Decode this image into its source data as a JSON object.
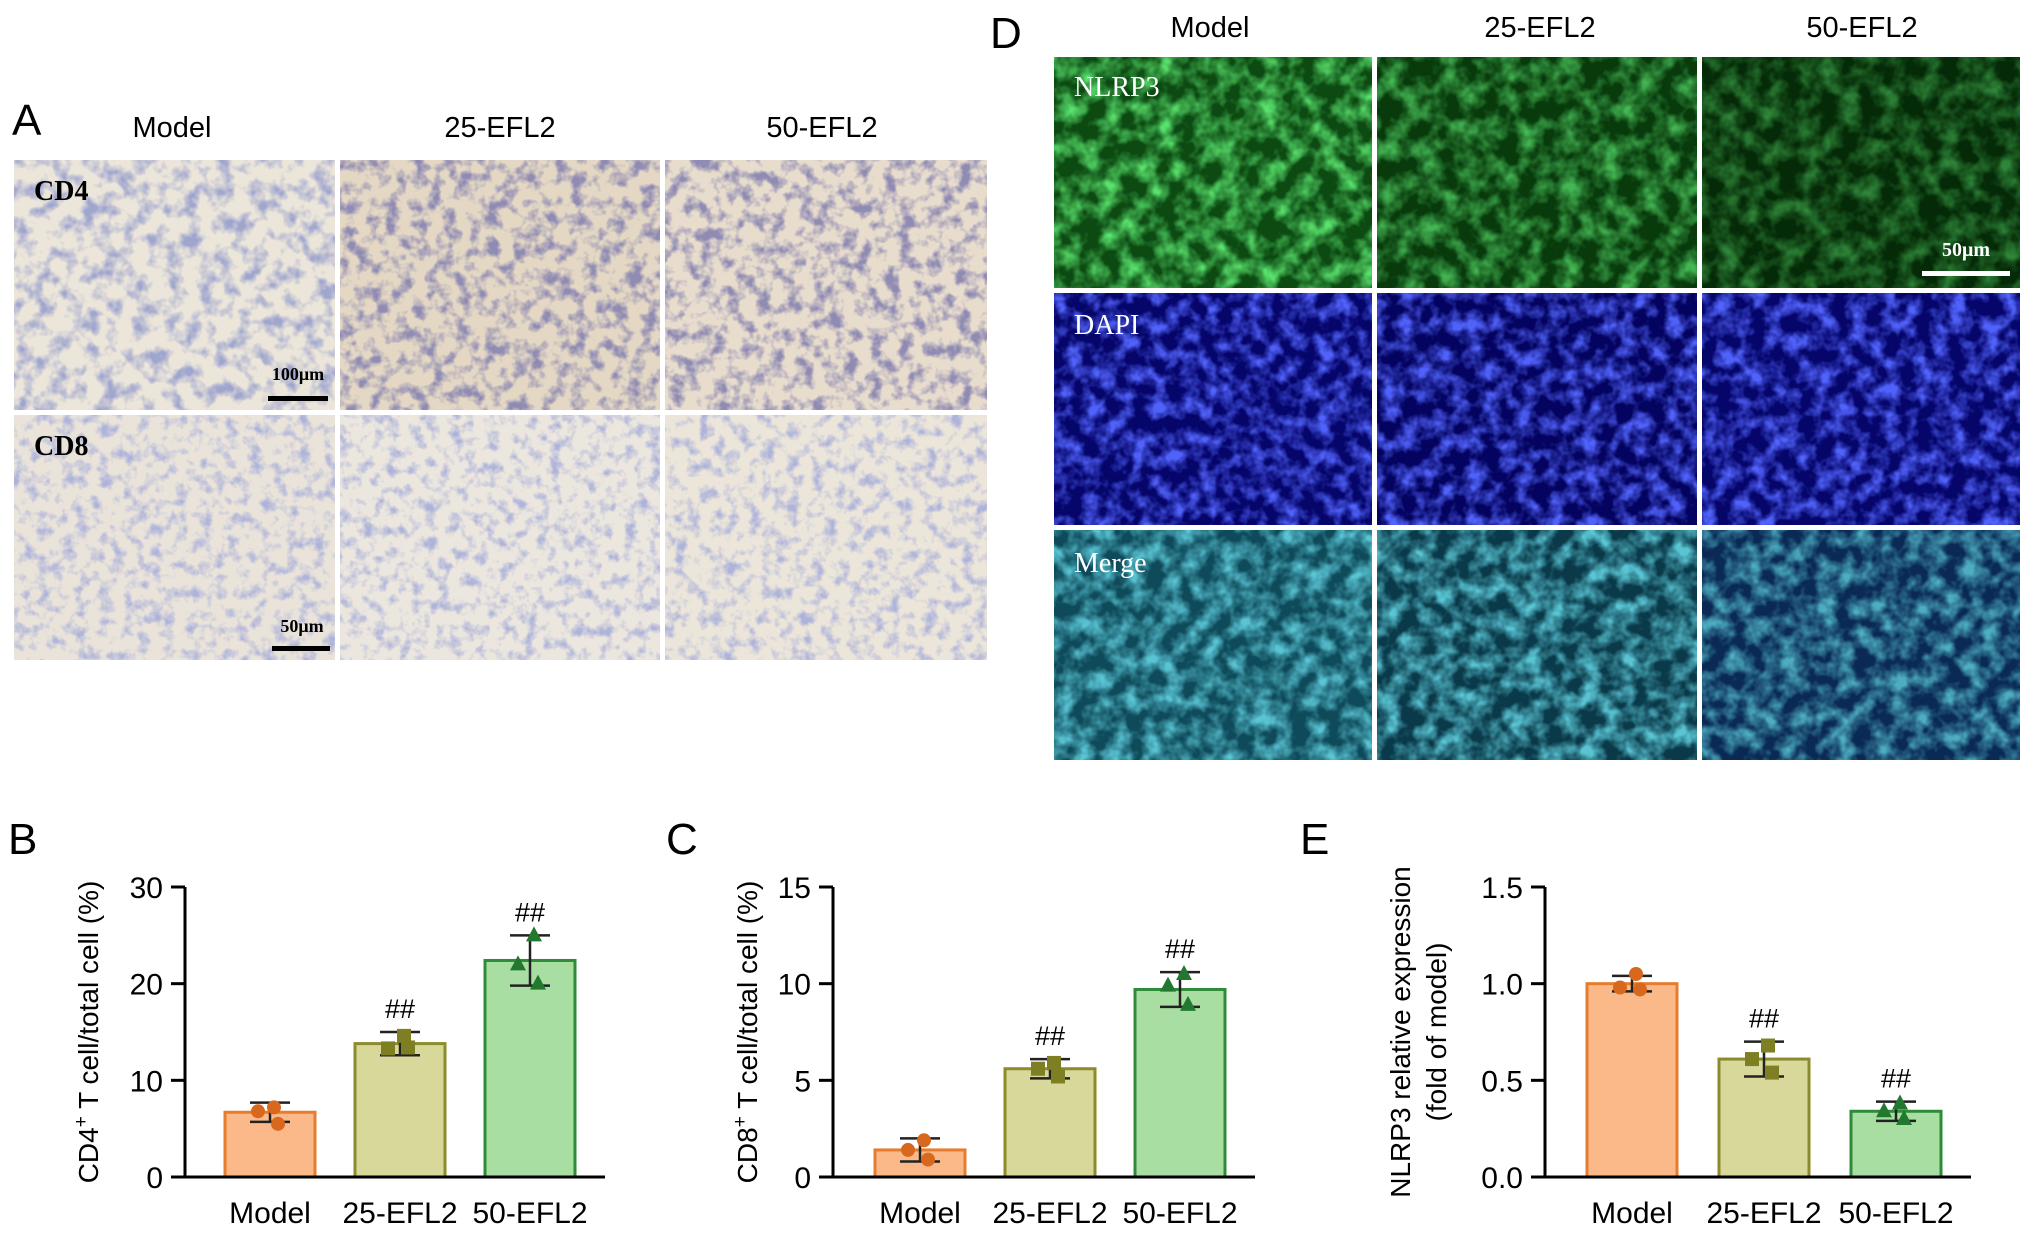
{
  "panels": {
    "A": {
      "letter": "A",
      "columns": [
        "Model",
        "25-EFL2",
        "50-EFL2"
      ],
      "rows": [
        {
          "label": "CD4",
          "scale_bar": "100μm"
        },
        {
          "label": "CD8",
          "scale_bar": "50μm"
        }
      ]
    },
    "D": {
      "letter": "D",
      "columns": [
        "Model",
        "25-EFL2",
        "50-EFL2"
      ],
      "rows": [
        {
          "label": "NLRP3"
        },
        {
          "label": "DAPI"
        },
        {
          "label": "Merge"
        }
      ],
      "scale_bar": "50μm"
    }
  },
  "colors": {
    "model_fill": "#fbb98a",
    "model_edge": "#e57c2e",
    "efl25_fill": "#d8d89a",
    "efl25_edge": "#8b8b2a",
    "efl50_fill": "#a9dea2",
    "efl50_edge": "#2e8b3a",
    "point_model": "#d9681f",
    "point_25": "#7e7e22",
    "point_50": "#23782f"
  },
  "chart_data": [
    {
      "panel": "B",
      "type": "bar",
      "ylabel_main": "CD4",
      "ylabel_sup": "+",
      "ylabel_rest": " T cell/total cell (%)",
      "categories": [
        "Model",
        "25-EFL2",
        "50-EFL2"
      ],
      "values": [
        6.7,
        13.8,
        22.4
      ],
      "error": [
        1.0,
        1.2,
        2.6
      ],
      "points": [
        [
          7.2,
          6.8,
          5.5
        ],
        [
          14.6,
          13.3,
          13.4
        ],
        [
          25.0,
          22.0,
          20.0
        ]
      ],
      "markers": [
        "circle",
        "square",
        "triangle"
      ],
      "significance": [
        "",
        "##",
        "##"
      ],
      "ylim": [
        0,
        30
      ],
      "yticks": [
        0,
        10,
        20,
        30
      ]
    },
    {
      "panel": "C",
      "type": "bar",
      "ylabel_main": "CD8",
      "ylabel_sup": "+",
      "ylabel_rest": " T cell/total cell (%)",
      "categories": [
        "Model",
        "25-EFL2",
        "50-EFL2"
      ],
      "values": [
        1.4,
        5.6,
        9.7
      ],
      "error": [
        0.6,
        0.5,
        0.9
      ],
      "points": [
        [
          1.9,
          1.4,
          0.9
        ],
        [
          5.9,
          5.6,
          5.2
        ],
        [
          10.5,
          9.9,
          8.9
        ]
      ],
      "markers": [
        "circle",
        "square",
        "triangle"
      ],
      "significance": [
        "",
        "##",
        "##"
      ],
      "ylim": [
        0,
        15
      ],
      "yticks": [
        0,
        5,
        10,
        15
      ]
    },
    {
      "panel": "E",
      "type": "bar",
      "ylabel_line1": "NLRP3 relative expression",
      "ylabel_line2": "(fold of model)",
      "categories": [
        "Model",
        "25-EFL2",
        "50-EFL2"
      ],
      "values": [
        1.0,
        0.61,
        0.34
      ],
      "error": [
        0.04,
        0.09,
        0.05
      ],
      "points": [
        [
          1.05,
          0.98,
          0.97
        ],
        [
          0.68,
          0.61,
          0.54
        ],
        [
          0.38,
          0.34,
          0.3
        ]
      ],
      "markers": [
        "circle",
        "square",
        "triangle"
      ],
      "significance": [
        "",
        "##",
        "##"
      ],
      "ylim": [
        0,
        1.5
      ],
      "yticks": [
        "0.0",
        "0.5",
        "1.0",
        "1.5"
      ]
    }
  ]
}
